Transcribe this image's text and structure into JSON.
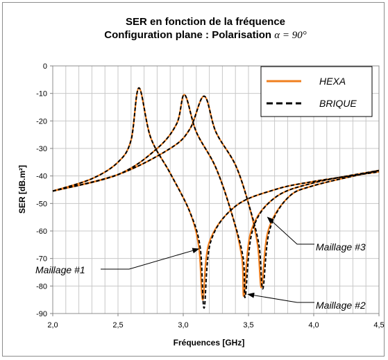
{
  "chart_data": {
    "type": "line",
    "title_line1": "SER en fonction de la fréquence",
    "title_line2_prefix": "Configuration plane : Polarisation ",
    "title_line2_symbol": "α = 90°",
    "xlabel": "Fréquences [GHz]",
    "ylabel": "SER [dB.m²]",
    "xlim": [
      2.0,
      4.5
    ],
    "ylim": [
      -90,
      0
    ],
    "xticks": [
      "2,0",
      "2,5",
      "3,0",
      "3,5",
      "4,0",
      "4,5"
    ],
    "yticks": [
      "0",
      "-10",
      "-20",
      "-30",
      "-40",
      "-50",
      "-60",
      "-70",
      "-80",
      "-90"
    ],
    "grid": true,
    "legend_position": "top-right",
    "legend": [
      {
        "label": "HEXA",
        "color": "#f07f1e",
        "style": "solid"
      },
      {
        "label": "BRIQUE",
        "color": "#000000",
        "style": "dashed"
      }
    ],
    "series": [
      {
        "name": "HEXA",
        "mesh": "Maillage #1",
        "x": [
          2.0,
          2.3,
          2.5,
          2.6,
          2.66,
          2.75,
          2.9,
          3.05,
          3.12,
          3.15,
          3.2,
          3.4,
          3.7,
          4.0,
          4.5
        ],
        "y": [
          -45.5,
          -41,
          -35,
          -27,
          -8,
          -26,
          -39,
          -53,
          -66,
          -85,
          -64,
          -51,
          -45,
          -42,
          -38.5
        ]
      },
      {
        "name": "BRIQUE",
        "mesh": "Maillage #1",
        "x": [
          2.0,
          2.3,
          2.5,
          2.6,
          2.66,
          2.75,
          2.9,
          3.05,
          3.13,
          3.16,
          3.21,
          3.4,
          3.7,
          4.0,
          4.5
        ],
        "y": [
          -45.5,
          -41,
          -35,
          -27,
          -8,
          -26,
          -39,
          -53,
          -66,
          -88,
          -64,
          -51,
          -45,
          -42,
          -38.5
        ]
      },
      {
        "name": "HEXA",
        "mesh": "Maillage #2",
        "x": [
          2.0,
          2.5,
          2.8,
          2.95,
          3.01,
          3.1,
          3.25,
          3.38,
          3.45,
          3.465,
          3.52,
          3.7,
          4.0,
          4.5
        ],
        "y": [
          -45.5,
          -39.5,
          -30,
          -21,
          -10.5,
          -24,
          -37,
          -55,
          -70,
          -83.5,
          -60,
          -48,
          -42.5,
          -38
        ]
      },
      {
        "name": "BRIQUE",
        "mesh": "Maillage #2",
        "x": [
          2.0,
          2.5,
          2.8,
          2.95,
          3.01,
          3.1,
          3.25,
          3.38,
          3.46,
          3.475,
          3.53,
          3.7,
          4.0,
          4.5
        ],
        "y": [
          -45.5,
          -39.5,
          -30,
          -21,
          -10.5,
          -24,
          -37,
          -55,
          -70,
          -84,
          -60,
          -48,
          -42.5,
          -38
        ]
      },
      {
        "name": "HEXA",
        "mesh": "Maillage #3",
        "x": [
          2.0,
          2.5,
          2.9,
          3.05,
          3.16,
          3.25,
          3.4,
          3.5,
          3.57,
          3.6,
          3.65,
          3.8,
          4.0,
          4.5
        ],
        "y": [
          -45.5,
          -39.5,
          -30,
          -23,
          -11,
          -24,
          -36,
          -50,
          -65,
          -80.5,
          -60,
          -48,
          -43.5,
          -38
        ]
      },
      {
        "name": "BRIQUE",
        "mesh": "Maillage #3",
        "x": [
          2.0,
          2.5,
          2.9,
          3.05,
          3.16,
          3.25,
          3.4,
          3.5,
          3.58,
          3.61,
          3.66,
          3.8,
          4.0,
          4.5
        ],
        "y": [
          -45.5,
          -39.5,
          -30,
          -23,
          -11,
          -24,
          -36,
          -50,
          -65,
          -81,
          -60,
          -48,
          -43.5,
          -38
        ]
      }
    ],
    "annotations": [
      {
        "text": "Maillage #1",
        "x": 3.14,
        "y": -66
      },
      {
        "text": "Maillage #2",
        "x": 3.48,
        "y": -83
      },
      {
        "text": "Maillage #3",
        "x": 3.63,
        "y": -55
      }
    ]
  }
}
